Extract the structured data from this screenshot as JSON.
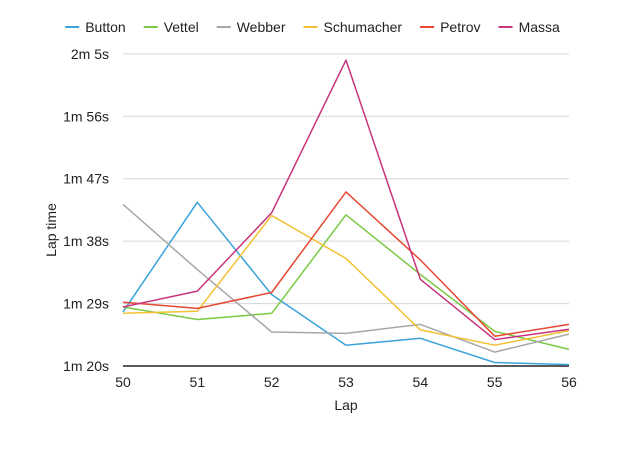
{
  "chart_data": {
    "type": "line",
    "title": "",
    "xlabel": "Lap",
    "ylabel": "Lap time",
    "x": [
      50,
      51,
      52,
      53,
      54,
      55,
      56
    ],
    "x_tick_labels": [
      "50",
      "51",
      "52",
      "53",
      "54",
      "55",
      "56"
    ],
    "ylim": [
      80,
      127
    ],
    "y_ticks": [
      80,
      89,
      98,
      107,
      116,
      125
    ],
    "y_tick_labels": [
      "1m 20s",
      "1m 29s",
      "1m 38s",
      "1m 47s",
      "1m 56s",
      "2m 5s"
    ],
    "grid": true,
    "legend_position": "top",
    "series": [
      {
        "name": "Button",
        "color": "#3aa3d8",
        "values": [
          87.8,
          103.6,
          90.3,
          83.0,
          84.0,
          80.5,
          80.2
        ]
      },
      {
        "name": "Vettel",
        "color": "#7ac943",
        "values": [
          88.5,
          86.7,
          87.6,
          101.8,
          93.2,
          85.0,
          82.4
        ]
      },
      {
        "name": "Webber",
        "color": "#a7a7a7",
        "values": [
          103.3,
          93.9,
          84.9,
          84.7,
          86.0,
          82.0,
          84.6
        ]
      },
      {
        "name": "Schumacher",
        "color": "#f2c031",
        "values": [
          87.6,
          87.9,
          101.7,
          95.5,
          85.2,
          83.0,
          85.1
        ]
      },
      {
        "name": "Petrov",
        "color": "#e64834",
        "values": [
          89.2,
          88.3,
          90.6,
          105.1,
          95.3,
          84.3,
          86.0
        ]
      },
      {
        "name": "Massa",
        "color": "#c8347c",
        "values": [
          88.5,
          90.8,
          102.1,
          124.1,
          92.5,
          83.8,
          85.3
        ]
      }
    ]
  }
}
